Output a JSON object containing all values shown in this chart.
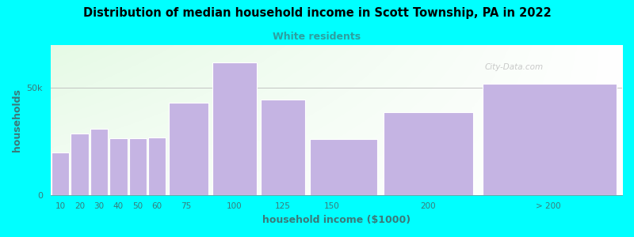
{
  "title": "Distribution of median household income in Scott Township, PA in 2022",
  "subtitle": "White residents",
  "xlabel": "household income ($1000)",
  "ylabel": "households",
  "background_outer": "#00FFFF",
  "bar_color": "#c5b4e3",
  "bar_edge_color": "#ffffff",
  "title_color": "#000000",
  "subtitle_color": "#2ca0a0",
  "axis_label_color": "#3a7a7a",
  "tick_color": "#3a7a7a",
  "watermark": "City-Data.com",
  "categories": [
    "10",
    "20",
    "30",
    "40",
    "50",
    "60",
    "75",
    "100",
    "125",
    "150",
    "200",
    "> 200"
  ],
  "left_edges": [
    5,
    15,
    25,
    35,
    45,
    55,
    65,
    87.5,
    112.5,
    137.5,
    175,
    225
  ],
  "widths": [
    10,
    10,
    10,
    10,
    10,
    10,
    22.5,
    25,
    25,
    37.5,
    50,
    75
  ],
  "tick_positions": [
    10,
    20,
    30,
    40,
    50,
    60,
    75,
    100,
    125,
    150,
    200
  ],
  "values": [
    20000,
    28500,
    31000,
    26500,
    26500,
    27000,
    43000,
    62000,
    44500,
    26000,
    38500,
    52000
  ],
  "ylim": [
    0,
    70000
  ],
  "yticks": [
    0,
    50000
  ],
  "ytick_labels": [
    "0",
    "50k"
  ],
  "xmin": 5,
  "xmax": 300,
  "grid_y": 50000
}
